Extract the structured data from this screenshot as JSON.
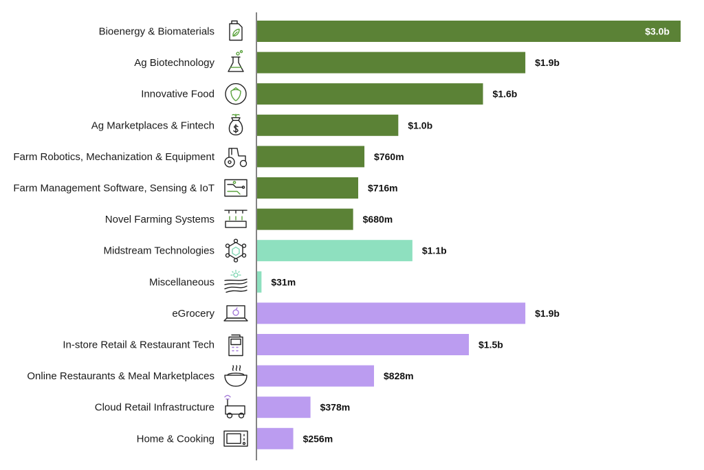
{
  "chart_data": {
    "type": "bar",
    "orientation": "horizontal",
    "categories": [
      "Bioenergy & Biomaterials",
      "Ag Biotechnology",
      "Innovative Food",
      "Ag Marketplaces & Fintech",
      "Farm Robotics, Mechanization & Equipment",
      "Farm Management Software, Sensing & IoT",
      "Novel Farming Systems",
      "Midstream Technologies",
      "Miscellaneous",
      "eGrocery",
      "In-store Retail & Restaurant Tech",
      "Online Restaurants & Meal Marketplaces",
      "Cloud Retail Infrastructure",
      "Home & Cooking"
    ],
    "values_usd_millions": [
      3000,
      1900,
      1600,
      1000,
      760,
      716,
      680,
      1100,
      31,
      1900,
      1500,
      828,
      378,
      256
    ],
    "value_labels": [
      "$3.0b",
      "$1.9b",
      "$1.6b",
      "$1.0b",
      "$760m",
      "$716m",
      "$680m",
      "$1.1b",
      "$31m",
      "$1.9b",
      "$1.5b",
      "$828m",
      "$378m",
      "$256m"
    ],
    "groups": [
      "upstream",
      "upstream",
      "upstream",
      "upstream",
      "upstream",
      "upstream",
      "upstream",
      "midstream",
      "midstream",
      "downstream",
      "downstream",
      "downstream",
      "downstream",
      "downstream"
    ],
    "icons": [
      "fuel-can-leaf-icon",
      "flask-icon",
      "strawberry-icon",
      "money-bag-icon",
      "tractor-icon",
      "circuit-board-icon",
      "vertical-farm-icon",
      "network-hexagon-icon",
      "sun-field-icon",
      "laptop-apple-icon",
      "payment-terminal-icon",
      "soup-bowl-icon",
      "delivery-robot-icon",
      "microwave-icon"
    ],
    "colors": {
      "upstream": "#5b8236",
      "midstream": "#8ee0bf",
      "downstream": "#bb9cf0",
      "axis": "#333333"
    },
    "xlim": [
      0,
      3000
    ],
    "title": "",
    "xlabel": "",
    "ylabel": ""
  }
}
